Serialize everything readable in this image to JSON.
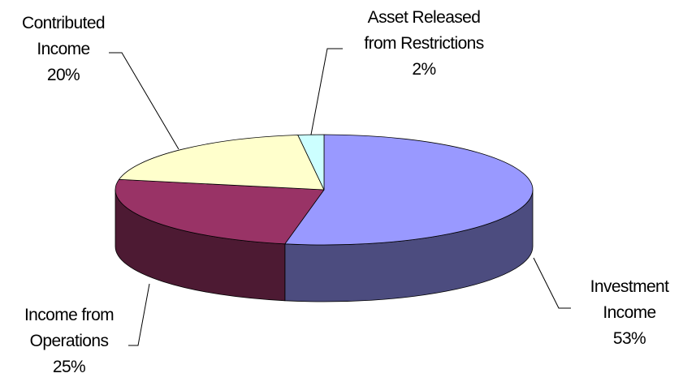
{
  "chart_data": {
    "type": "pie",
    "three_d": true,
    "legend": "none",
    "title": "",
    "slices": [
      {
        "name": "Investment Income",
        "label_lines": [
          "Investment",
          "Income"
        ],
        "value": 53,
        "pct_label": "53%",
        "color": "#9999FF",
        "side_color": "#4C4C7F"
      },
      {
        "name": "Income from Operations",
        "label_lines": [
          "Income from",
          "Operations"
        ],
        "value": 25,
        "pct_label": "25%",
        "color": "#993366",
        "side_color": "#4D1A33"
      },
      {
        "name": "Contributed Income",
        "label_lines": [
          "Contributed",
          "Income"
        ],
        "value": 20,
        "pct_label": "20%",
        "color": "#FFFFCC",
        "side_color": "#80806A"
      },
      {
        "name": "Asset Released from Restrictions",
        "label_lines": [
          "Asset Released",
          "from Restrictions"
        ],
        "value": 2,
        "pct_label": "2%",
        "color": "#CCFFFF",
        "side_color": "#668080"
      }
    ]
  }
}
